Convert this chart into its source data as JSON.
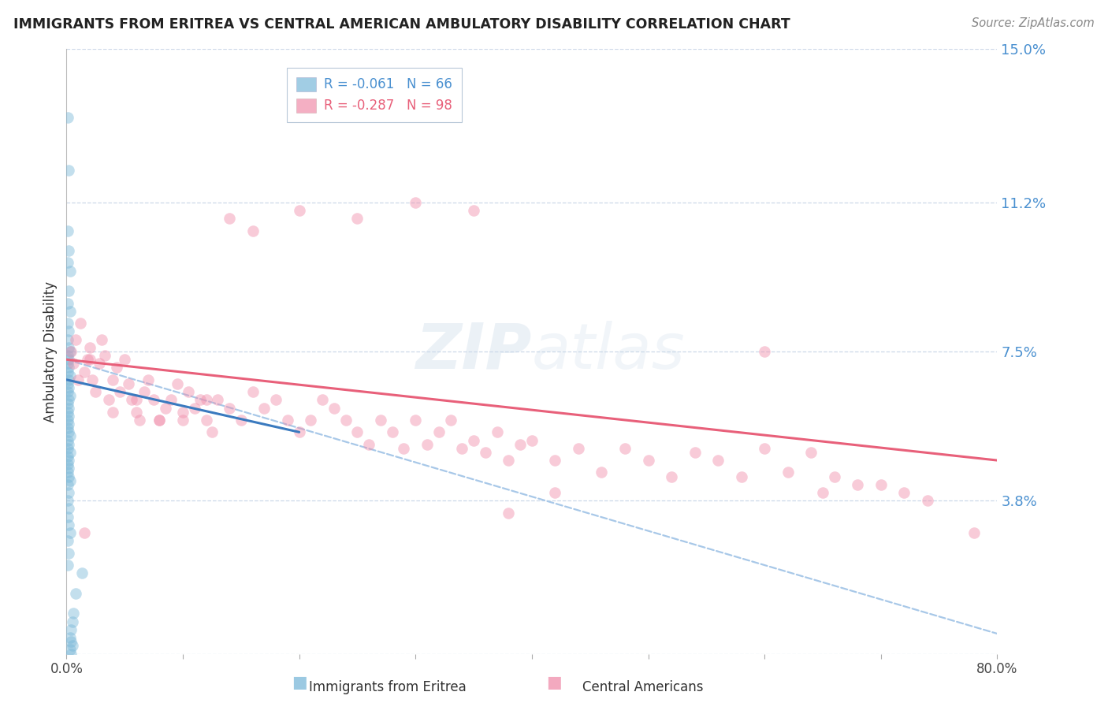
{
  "title": "IMMIGRANTS FROM ERITREA VS CENTRAL AMERICAN AMBULATORY DISABILITY CORRELATION CHART",
  "source": "Source: ZipAtlas.com",
  "ylabel": "Ambulatory Disability",
  "xlim": [
    0.0,
    0.8
  ],
  "ylim": [
    0.0,
    0.15
  ],
  "yticks": [
    0.0,
    0.038,
    0.075,
    0.112,
    0.15
  ],
  "ytick_labels": [
    "",
    "3.8%",
    "7.5%",
    "11.2%",
    "15.0%"
  ],
  "xticks": [
    0.0,
    0.1,
    0.2,
    0.3,
    0.4,
    0.5,
    0.6,
    0.7,
    0.8
  ],
  "xtick_labels": [
    "0.0%",
    "",
    "",
    "",
    "",
    "",
    "",
    "",
    "80.0%"
  ],
  "legend_line1": "R = -0.061   N = 66",
  "legend_line2": "R = -0.287   N = 98",
  "eritrea_color": "#7ab8d9",
  "central_color": "#f08daa",
  "eritrea_line_color": "#3a7abf",
  "central_line_color": "#e8607a",
  "dashed_line_color": "#a8c8e8",
  "background_color": "#ffffff",
  "grid_color": "#ccd8e8",
  "title_color": "#222222",
  "label_color": "#4a90d0",
  "source_color": "#888888",
  "eritrea_scatter_x": [
    0.001,
    0.002,
    0.001,
    0.002,
    0.001,
    0.003,
    0.002,
    0.001,
    0.003,
    0.001,
    0.002,
    0.001,
    0.002,
    0.003,
    0.001,
    0.002,
    0.001,
    0.002,
    0.001,
    0.003,
    0.002,
    0.001,
    0.002,
    0.001,
    0.003,
    0.002,
    0.001,
    0.002,
    0.001,
    0.002,
    0.001,
    0.002,
    0.001,
    0.002,
    0.003,
    0.001,
    0.002,
    0.001,
    0.003,
    0.001,
    0.002,
    0.001,
    0.002,
    0.001,
    0.002,
    0.003,
    0.001,
    0.002,
    0.001,
    0.002,
    0.001,
    0.002,
    0.003,
    0.001,
    0.002,
    0.001,
    0.013,
    0.008,
    0.006,
    0.005,
    0.004,
    0.003,
    0.004,
    0.005,
    0.003,
    0.004
  ],
  "eritrea_scatter_y": [
    0.133,
    0.12,
    0.105,
    0.1,
    0.097,
    0.095,
    0.09,
    0.087,
    0.085,
    0.082,
    0.08,
    0.078,
    0.076,
    0.075,
    0.074,
    0.073,
    0.072,
    0.071,
    0.07,
    0.069,
    0.068,
    0.067,
    0.066,
    0.065,
    0.064,
    0.063,
    0.062,
    0.061,
    0.06,
    0.059,
    0.058,
    0.057,
    0.056,
    0.055,
    0.054,
    0.053,
    0.052,
    0.051,
    0.05,
    0.049,
    0.048,
    0.047,
    0.046,
    0.045,
    0.044,
    0.043,
    0.042,
    0.04,
    0.038,
    0.036,
    0.034,
    0.032,
    0.03,
    0.028,
    0.025,
    0.022,
    0.02,
    0.015,
    0.01,
    0.008,
    0.006,
    0.004,
    0.003,
    0.002,
    0.001,
    0.0
  ],
  "central_scatter_x": [
    0.004,
    0.006,
    0.008,
    0.01,
    0.012,
    0.015,
    0.018,
    0.02,
    0.022,
    0.025,
    0.028,
    0.03,
    0.033,
    0.036,
    0.04,
    0.043,
    0.046,
    0.05,
    0.053,
    0.056,
    0.06,
    0.063,
    0.067,
    0.07,
    0.075,
    0.08,
    0.085,
    0.09,
    0.095,
    0.1,
    0.105,
    0.11,
    0.115,
    0.12,
    0.125,
    0.13,
    0.14,
    0.15,
    0.16,
    0.17,
    0.18,
    0.19,
    0.2,
    0.21,
    0.22,
    0.23,
    0.24,
    0.25,
    0.26,
    0.27,
    0.28,
    0.29,
    0.3,
    0.31,
    0.32,
    0.33,
    0.34,
    0.35,
    0.36,
    0.37,
    0.38,
    0.39,
    0.4,
    0.42,
    0.44,
    0.46,
    0.48,
    0.5,
    0.52,
    0.54,
    0.56,
    0.58,
    0.6,
    0.62,
    0.64,
    0.66,
    0.68,
    0.7,
    0.72,
    0.74,
    0.2,
    0.25,
    0.3,
    0.35,
    0.14,
    0.16,
    0.6,
    0.65,
    0.38,
    0.42,
    0.04,
    0.06,
    0.08,
    0.1,
    0.12,
    0.02,
    0.015,
    0.78
  ],
  "central_scatter_y": [
    0.075,
    0.072,
    0.078,
    0.068,
    0.082,
    0.07,
    0.073,
    0.076,
    0.068,
    0.065,
    0.072,
    0.078,
    0.074,
    0.063,
    0.068,
    0.071,
    0.065,
    0.073,
    0.067,
    0.063,
    0.06,
    0.058,
    0.065,
    0.068,
    0.063,
    0.058,
    0.061,
    0.063,
    0.067,
    0.058,
    0.065,
    0.061,
    0.063,
    0.058,
    0.055,
    0.063,
    0.061,
    0.058,
    0.065,
    0.061,
    0.063,
    0.058,
    0.055,
    0.058,
    0.063,
    0.061,
    0.058,
    0.055,
    0.052,
    0.058,
    0.055,
    0.051,
    0.058,
    0.052,
    0.055,
    0.058,
    0.051,
    0.053,
    0.05,
    0.055,
    0.048,
    0.052,
    0.053,
    0.048,
    0.051,
    0.045,
    0.051,
    0.048,
    0.044,
    0.05,
    0.048,
    0.044,
    0.051,
    0.045,
    0.05,
    0.044,
    0.042,
    0.042,
    0.04,
    0.038,
    0.11,
    0.108,
    0.112,
    0.11,
    0.108,
    0.105,
    0.075,
    0.04,
    0.035,
    0.04,
    0.06,
    0.063,
    0.058,
    0.06,
    0.063,
    0.073,
    0.03,
    0.03
  ],
  "eritrea_trend_x": [
    0.0,
    0.2
  ],
  "eritrea_trend_y": [
    0.068,
    0.055
  ],
  "central_trend_x": [
    0.0,
    0.8
  ],
  "central_trend_y": [
    0.073,
    0.048
  ],
  "dashed_trend_x": [
    0.0,
    0.8
  ],
  "dashed_trend_y": [
    0.073,
    0.005
  ]
}
